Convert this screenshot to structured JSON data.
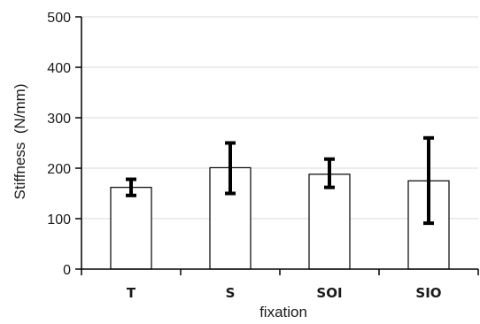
{
  "chart_data": {
    "type": "bar",
    "title": "",
    "xlabel": "fixation",
    "ylabel": "Stiffness  (N/mm)",
    "categories": [
      "T",
      "S",
      "SOI",
      "SIO"
    ],
    "values": [
      162,
      201,
      188,
      175
    ],
    "error_bars": [
      {
        "low": 146,
        "high": 178
      },
      {
        "low": 150,
        "high": 250
      },
      {
        "low": 162,
        "high": 218
      },
      {
        "low": 91,
        "high": 260
      }
    ],
    "ylim": [
      0,
      500
    ],
    "yticks": [
      0,
      100,
      200,
      300,
      400,
      500
    ],
    "grid": true,
    "colors": {
      "bar_fill": "#ffffff",
      "bar_stroke": "#000000",
      "error_bar": "#000000",
      "grid": "#d9d9d9",
      "axis": "#000000"
    }
  }
}
